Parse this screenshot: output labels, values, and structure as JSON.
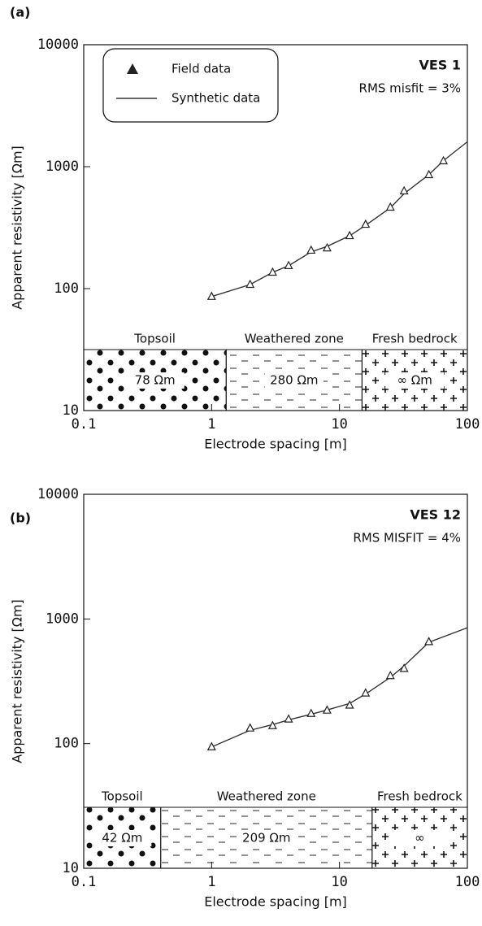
{
  "chart_data": [
    {
      "type": "scatter",
      "panel": "(a)",
      "title": "VES 1",
      "subtitle": "RMS misfit = 3%",
      "x_label": "Electrode spacing [m]",
      "y_label": "Apparent resistivity [Ωm]",
      "log_x": true,
      "log_y": true,
      "legend": "upper left",
      "xlim": [
        0.1,
        100
      ],
      "ylim": [
        10,
        10000
      ],
      "xticks": [
        0.1,
        1,
        10,
        100
      ],
      "yticks": [
        10,
        100,
        1000,
        10000
      ],
      "series": [
        {
          "name": "Field data",
          "marker": "triangle",
          "color": "#222222",
          "x": [
            1,
            2,
            3,
            4,
            6,
            8,
            12,
            16,
            25,
            32,
            50,
            65
          ],
          "values": [
            86,
            108,
            136,
            154,
            206,
            215,
            271,
            336,
            464,
            631,
            858,
            1113
          ]
        },
        {
          "name": "Synthetic data",
          "marker": "line",
          "color": "#333333",
          "x": [
            1,
            2,
            3,
            4,
            6,
            8,
            12,
            16,
            25,
            32,
            50,
            65,
            100
          ],
          "values": [
            86,
            108,
            136,
            154,
            200,
            222,
            271,
            330,
            460,
            600,
            860,
            1120,
            1600
          ]
        }
      ],
      "layers": [
        {
          "name": "Topsoil",
          "resistivity": "78 Ωm",
          "from": 0.1,
          "to": 1.3
        },
        {
          "name": "Weathered zone",
          "resistivity": "280 Ωm",
          "from": 1.3,
          "to": 15
        },
        {
          "name": "Fresh bedrock",
          "resistivity": "∞ Ωm",
          "from": 15,
          "to": 100
        }
      ]
    },
    {
      "type": "scatter",
      "panel": "(b)",
      "title": "VES 12",
      "subtitle": "RMS MISFIT = 4%",
      "x_label": "Electrode spacing [m]",
      "y_label": "Apparent resistivity [Ωm]",
      "log_x": true,
      "log_y": true,
      "legend": false,
      "xlim": [
        0.1,
        100
      ],
      "ylim": [
        10,
        10000
      ],
      "xticks": [
        {
          "value": 0.1,
          "label": "0.1"
        },
        1,
        10,
        100
      ],
      "yticks": [
        10,
        100,
        1000,
        10000
      ],
      "series": [
        {
          "marker": "triangle",
          "color": "#222222",
          "x": [
            1,
            2,
            3,
            4,
            6,
            8,
            12,
            16,
            25,
            32,
            50
          ],
          "values": [
            94,
            133,
            139,
            157,
            174,
            185,
            203,
            254,
            350,
            400,
            656
          ]
        },
        {
          "marker": "line",
          "color": "#333333",
          "x": [
            1,
            2,
            3,
            4,
            6,
            8,
            12,
            16,
            25,
            32,
            50,
            100
          ],
          "values": [
            94,
            128,
            142,
            155,
            172,
            186,
            210,
            250,
            340,
            420,
            650,
            850
          ]
        }
      ],
      "layers": [
        {
          "name": "Topsoil",
          "resistivity": "42 Ωm",
          "from": 0.1,
          "to": 0.4
        },
        {
          "name": "Weathered zone",
          "resistivity": "209 Ωm",
          "from": 0.4,
          "to": 18
        },
        {
          "name": "Fresh bedrock",
          "resistivity": "∞",
          "from": 18,
          "to": 100
        }
      ]
    }
  ]
}
